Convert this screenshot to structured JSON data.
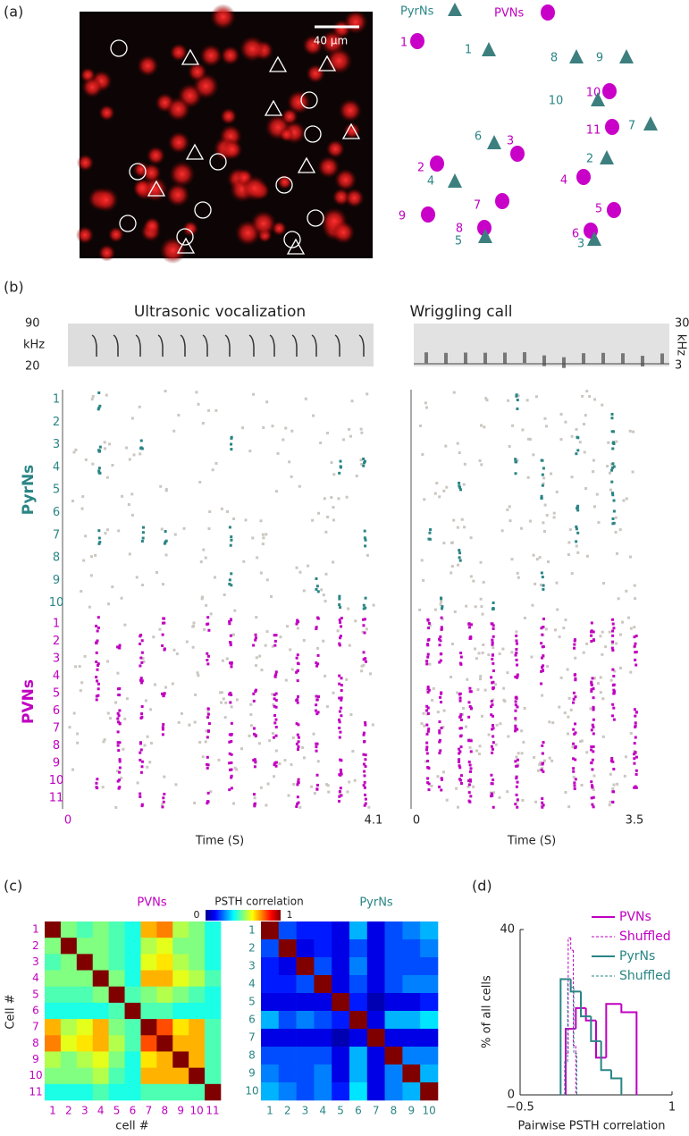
{
  "panel_labels": [
    "(a)",
    "(b)",
    "(c)",
    "(d)"
  ],
  "panel_a": {
    "scale_bar": "40 μm",
    "legend": {
      "pyr": "PyrNs",
      "pv": "PVNs"
    },
    "pv_cells": [
      1,
      2,
      3,
      4,
      5,
      6,
      7,
      8,
      9,
      10,
      11
    ],
    "pyr_cells": [
      1,
      2,
      3,
      4,
      5,
      6,
      7,
      8,
      9,
      10
    ]
  },
  "panel_b": {
    "titles": [
      "Ultrasonic vocalization",
      "Wriggling call"
    ],
    "spectrogram_left": {
      "ylim": [
        20,
        90
      ],
      "unit": "kHz"
    },
    "spectrogram_right": {
      "ylim": [
        3,
        30
      ],
      "unit": "kHz"
    },
    "groups": [
      "PyrNs",
      "PVNs"
    ],
    "pyr_rows": [
      1,
      2,
      3,
      4,
      5,
      6,
      7,
      8,
      9,
      10
    ],
    "pv_rows": [
      1,
      2,
      3,
      4,
      5,
      6,
      7,
      8,
      9,
      10,
      11
    ],
    "time_left": {
      "xlim": [
        0,
        4.1
      ],
      "xticks": [
        0,
        4.1
      ],
      "xlabel": "Time (S)"
    },
    "time_right": {
      "xlim": [
        0,
        3.5
      ],
      "xticks": [
        0,
        3.5
      ],
      "xlabel": "Time (S)"
    }
  },
  "chart_data": [
    {
      "type": "heatmap",
      "title": "PVNs",
      "color": "#c000c0",
      "categories": [
        1,
        2,
        3,
        4,
        5,
        6,
        7,
        8,
        9,
        10,
        11
      ],
      "xlabel": "cell #",
      "ylabel": "Cell #",
      "colorbar": {
        "title": "PSTH  correlation",
        "lim": [
          0,
          1
        ],
        "ticks": [
          0,
          1
        ],
        "colormap": "jet"
      },
      "values": [
        [
          1,
          0.5,
          0.45,
          0.5,
          0.45,
          0.4,
          0.7,
          0.75,
          0.55,
          0.5,
          0.4
        ],
        [
          0.5,
          1,
          0.5,
          0.5,
          0.45,
          0.4,
          0.55,
          0.6,
          0.5,
          0.5,
          0.4
        ],
        [
          0.45,
          0.5,
          1,
          0.5,
          0.45,
          0.4,
          0.6,
          0.65,
          0.55,
          0.5,
          0.4
        ],
        [
          0.5,
          0.5,
          0.5,
          1,
          0.5,
          0.4,
          0.7,
          0.7,
          0.6,
          0.55,
          0.45
        ],
        [
          0.45,
          0.45,
          0.45,
          0.5,
          1,
          0.45,
          0.5,
          0.55,
          0.5,
          0.45,
          0.4
        ],
        [
          0.4,
          0.4,
          0.4,
          0.4,
          0.45,
          1,
          0.45,
          0.45,
          0.4,
          0.4,
          0.4
        ],
        [
          0.7,
          0.55,
          0.6,
          0.7,
          0.5,
          0.45,
          1,
          0.8,
          0.65,
          0.7,
          0.45
        ],
        [
          0.75,
          0.6,
          0.65,
          0.7,
          0.55,
          0.45,
          0.8,
          1,
          0.7,
          0.7,
          0.45
        ],
        [
          0.55,
          0.5,
          0.55,
          0.6,
          0.5,
          0.4,
          0.65,
          0.7,
          1,
          0.7,
          0.45
        ],
        [
          0.5,
          0.5,
          0.5,
          0.55,
          0.45,
          0.4,
          0.7,
          0.7,
          0.7,
          1,
          0.45
        ],
        [
          0.4,
          0.4,
          0.4,
          0.45,
          0.4,
          0.4,
          0.45,
          0.45,
          0.45,
          0.45,
          1
        ]
      ]
    },
    {
      "type": "heatmap",
      "title": "PyrNs",
      "color": "#2a8585",
      "categories": [
        1,
        2,
        3,
        4,
        5,
        6,
        7,
        8,
        9,
        10
      ],
      "values": [
        [
          1,
          0.2,
          0.15,
          0.15,
          0.1,
          0.3,
          0.1,
          0.2,
          0.25,
          0.3
        ],
        [
          0.2,
          1,
          0.1,
          0.15,
          0.1,
          0.2,
          0.1,
          0.2,
          0.2,
          0.25
        ],
        [
          0.15,
          0.1,
          1,
          0.2,
          0.1,
          0.25,
          0.1,
          0.2,
          0.2,
          0.2
        ],
        [
          0.15,
          0.15,
          0.2,
          1,
          0.1,
          0.2,
          0.1,
          0.2,
          0.25,
          0.25
        ],
        [
          0.1,
          0.1,
          0.1,
          0.1,
          1,
          0.15,
          0.05,
          0.1,
          0.1,
          0.15
        ],
        [
          0.3,
          0.2,
          0.25,
          0.2,
          0.15,
          1,
          0.1,
          0.3,
          0.3,
          0.35
        ],
        [
          0.1,
          0.1,
          0.1,
          0.1,
          0.05,
          0.1,
          1,
          0.1,
          0.1,
          0.1
        ],
        [
          0.2,
          0.2,
          0.2,
          0.2,
          0.1,
          0.3,
          0.1,
          1,
          0.25,
          0.25
        ],
        [
          0.25,
          0.2,
          0.2,
          0.25,
          0.1,
          0.3,
          0.1,
          0.25,
          1,
          0.3
        ],
        [
          0.3,
          0.25,
          0.2,
          0.25,
          0.15,
          0.35,
          0.1,
          0.25,
          0.3,
          1
        ]
      ]
    },
    {
      "type": "histogram",
      "xlabel": "Pairwise PSTH correlation",
      "ylabel": "% of all cells",
      "xlim": [
        -0.5,
        1
      ],
      "xticks": [
        {
          "value": -0.5,
          "label": "−0.5"
        },
        1
      ],
      "ylim": [
        0,
        40
      ],
      "yticks": [
        0,
        40
      ],
      "series": [
        {
          "name": "PVNs",
          "color": "#c000c0",
          "dashed": false,
          "bins": [
            -0.05,
            0.05,
            0.15,
            0.25,
            0.35,
            0.5,
            0.65
          ],
          "counts": [
            16,
            21,
            18,
            9,
            22,
            20
          ]
        },
        {
          "name": "Shuffled",
          "color": "#c000c0",
          "dashed": true,
          "bins": [
            -0.05,
            -0.025,
            0,
            0.025,
            0.05
          ],
          "counts": [
            10,
            38,
            35,
            12
          ]
        },
        {
          "name": "PyrNs",
          "color": "#2a8585",
          "dashed": false,
          "bins": [
            -0.1,
            0,
            0.1,
            0.2,
            0.3,
            0.4,
            0.5
          ],
          "counts": [
            28,
            25,
            19,
            13,
            6,
            4
          ]
        },
        {
          "name": "Shuffled",
          "color": "#2a8585",
          "dashed": true,
          "bins": [
            -0.06,
            -0.03,
            0,
            0.03,
            0.06
          ],
          "counts": [
            8,
            27,
            26,
            10
          ]
        }
      ]
    }
  ]
}
